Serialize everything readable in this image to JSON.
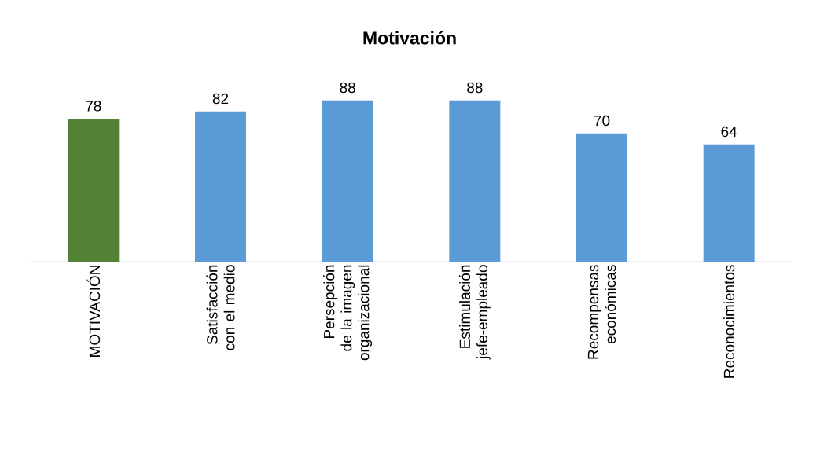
{
  "chart_data": {
    "type": "bar",
    "title": "Motivación",
    "categories": [
      "MOTIVACIÓN",
      "Satisfacción con el medio",
      "Persepción de la imagen organizacional",
      "Estimulación jefe-empleado",
      "Recompensas económicas",
      "Reconocimientos"
    ],
    "values": [
      78,
      82,
      88,
      88,
      70,
      64
    ],
    "colors": [
      "#538135",
      "#5b9bd5",
      "#5b9bd5",
      "#5b9bd5",
      "#5b9bd5",
      "#5b9bd5"
    ],
    "data_labels": true
  }
}
